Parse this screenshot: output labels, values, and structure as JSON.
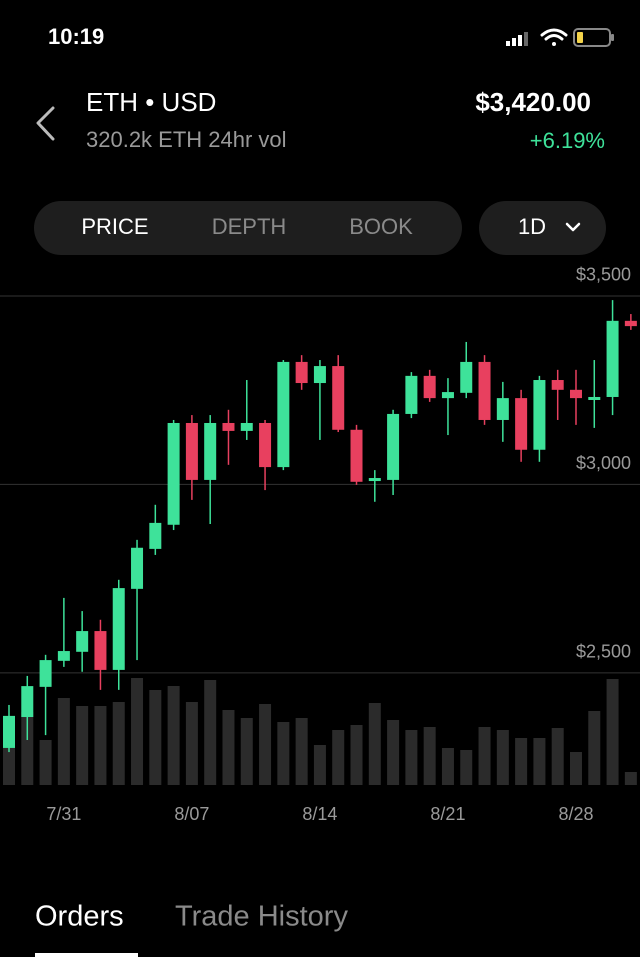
{
  "status_bar": {
    "time": "10:19"
  },
  "header": {
    "pair": "ETH • USD",
    "volume": "320.2k ETH 24hr vol",
    "price": "$3,420.00",
    "change": "+6.19%"
  },
  "tabs": {
    "items": [
      "PRICE",
      "DEPTH",
      "BOOK"
    ],
    "active": 0,
    "interval": "1D"
  },
  "chart_data": {
    "type": "candlestick",
    "categories": [
      null,
      null,
      null,
      "7/31",
      null,
      null,
      null,
      null,
      null,
      null,
      "8/07",
      null,
      null,
      null,
      null,
      null,
      null,
      "8/14",
      null,
      null,
      null,
      null,
      null,
      null,
      "8/21",
      null,
      null,
      null,
      null,
      null,
      null,
      "8/28",
      null,
      null,
      null
    ],
    "open": [
      2301,
      2383,
      2463,
      2532,
      2556,
      2611,
      2508,
      2723,
      2829,
      2893,
      3163,
      3012,
      3163,
      3142,
      3163,
      3046,
      3325,
      3269,
      3314,
      3145,
      3009,
      3012,
      3187,
      3288,
      3229,
      3243,
      3325,
      3171,
      3229,
      3092,
      3277,
      3251,
      3224,
      3232,
      3434
    ],
    "high": [
      2415,
      2492,
      2548,
      2699,
      2664,
      2641,
      2747,
      2853,
      2946,
      3171,
      3184,
      3184,
      3198,
      3277,
      3171,
      3330,
      3343,
      3330,
      3343,
      3158,
      3038,
      3198,
      3298,
      3304,
      3282,
      3378,
      3343,
      3272,
      3251,
      3288,
      3304,
      3304,
      3330,
      3489,
      3452
    ],
    "low": [
      2290,
      2322,
      2335,
      2516,
      2503,
      2455,
      2455,
      2534,
      2813,
      2879,
      2959,
      2895,
      3052,
      3118,
      2985,
      3038,
      3251,
      3118,
      3139,
      2999,
      2954,
      2972,
      3176,
      3219,
      3131,
      3229,
      3158,
      3113,
      3060,
      3060,
      3171,
      3158,
      3150,
      3184,
      3410
    ],
    "close": [
      2386,
      2465,
      2534,
      2558,
      2611,
      2508,
      2725,
      2832,
      2898,
      3163,
      3012,
      3163,
      3142,
      3163,
      3046,
      3325,
      3269,
      3314,
      3145,
      3007,
      3017,
      3187,
      3288,
      3229,
      3245,
      3325,
      3171,
      3229,
      3092,
      3277,
      3251,
      3229,
      3232,
      3434,
      3420
    ],
    "volume": [
      50,
      73,
      45,
      87,
      79,
      79,
      83,
      107,
      95,
      99,
      83,
      105,
      75,
      67,
      81,
      63,
      67,
      40,
      55,
      60,
      82,
      65,
      55,
      58,
      37,
      35,
      58,
      55,
      47,
      47,
      57,
      33,
      74,
      106,
      13
    ],
    "ylim": [
      2200,
      3580
    ],
    "yticks": [
      {
        "value": 2500,
        "label": "$2,500"
      },
      {
        "value": 3000,
        "label": "$3,000"
      },
      {
        "value": 3500,
        "label": "$3,500"
      }
    ],
    "volume_lim": [
      0,
      120
    ],
    "up_color": "#3ee29a",
    "down_color": "#e8405f",
    "volume_color": "#2b2b2b",
    "grid": true
  },
  "bottom_tabs": {
    "items": [
      "Orders",
      "Trade History"
    ],
    "active": 0
  }
}
